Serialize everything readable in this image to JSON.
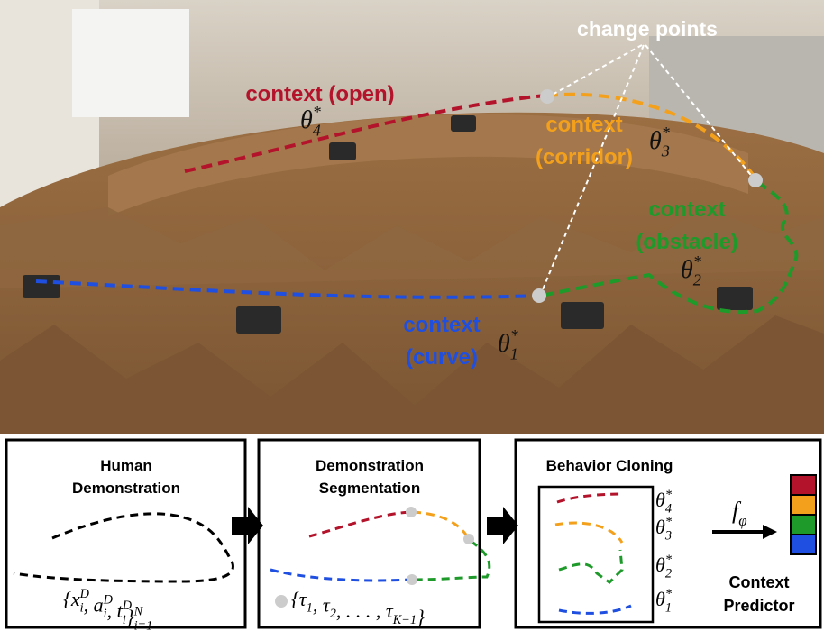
{
  "photo": {
    "change_points_label": "change points",
    "contexts": [
      {
        "lines": [
          "context",
          "(curve)"
        ],
        "theta": {
          "base": "θ",
          "sup": "*",
          "sub": "1"
        }
      },
      {
        "lines": [
          "context",
          "(obstacle)"
        ],
        "theta": {
          "base": "θ",
          "sup": "*",
          "sub": "2"
        }
      },
      {
        "lines": [
          "context",
          "(corridor)"
        ],
        "theta": {
          "base": "θ",
          "sup": "*",
          "sub": "3"
        }
      },
      {
        "lines": [
          "context (open)"
        ],
        "theta": {
          "base": "θ",
          "sup": "*",
          "sub": "4"
        }
      }
    ]
  },
  "colors": {
    "curve": "#1f4fe0",
    "obstacle": "#1e9a2a",
    "corridor": "#f3a11c",
    "open": "#b3132b"
  },
  "panels": [
    {
      "title": [
        "Human",
        "Demonstration"
      ],
      "formula": [
        {
          "text": "{x",
          "sub": "i",
          "sup": "D"
        },
        {
          "text": ", a",
          "sub": "i",
          "sup": "D"
        },
        {
          "text": ", t",
          "sub": "i",
          "sup": "D"
        },
        {
          "text": "}",
          "sub": "i=1",
          "sup": "N"
        }
      ]
    },
    {
      "title": [
        "Demonstration",
        "Segmentation"
      ],
      "formula": [
        {
          "text": "{τ",
          "sub": "1"
        },
        {
          "text": ", τ",
          "sub": "2"
        },
        {
          "text": ", . . . , τ",
          "sub": "K−1"
        },
        {
          "text": "}"
        }
      ]
    },
    {
      "title": [
        "Behavior Cloning"
      ],
      "legend": [
        {
          "base": "θ",
          "sup": "*",
          "sub": "4"
        },
        {
          "base": "θ",
          "sup": "*",
          "sub": "3"
        },
        {
          "base": "θ",
          "sup": "*",
          "sub": "2"
        },
        {
          "base": "θ",
          "sup": "*",
          "sub": "1"
        }
      ],
      "predictor_symbol": [
        {
          "text": "f",
          "sub": "φ"
        }
      ],
      "predictor_label": [
        "Context",
        "Predictor"
      ]
    }
  ]
}
